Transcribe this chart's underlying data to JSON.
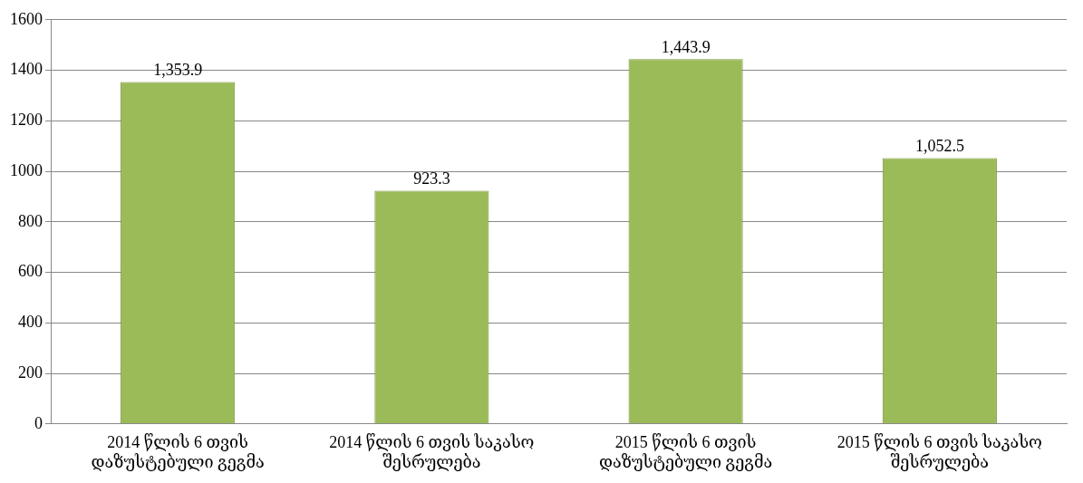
{
  "chart_data": {
    "type": "bar",
    "categories": [
      "2014 წლის 6 თვის დაზუსტებული გეგმა",
      "2014 წლის 6 თვის საკასო შესრულება",
      "2015 წლის 6 თვის დაზუსტებული გეგმა",
      "2015 წლის 6 თვის საკასო შესრულება"
    ],
    "values": [
      1353.9,
      923.3,
      1443.9,
      1052.5
    ],
    "color": "#9bbb59",
    "ylim": [
      0,
      1600
    ],
    "yticks": [
      0,
      200,
      400,
      600,
      800,
      1000,
      1200,
      1400,
      1600
    ],
    "grid": "y",
    "value_labels": [
      "1,353.9",
      "923.3",
      "1,443.9",
      "1,052.5"
    ],
    "legend": false
  }
}
